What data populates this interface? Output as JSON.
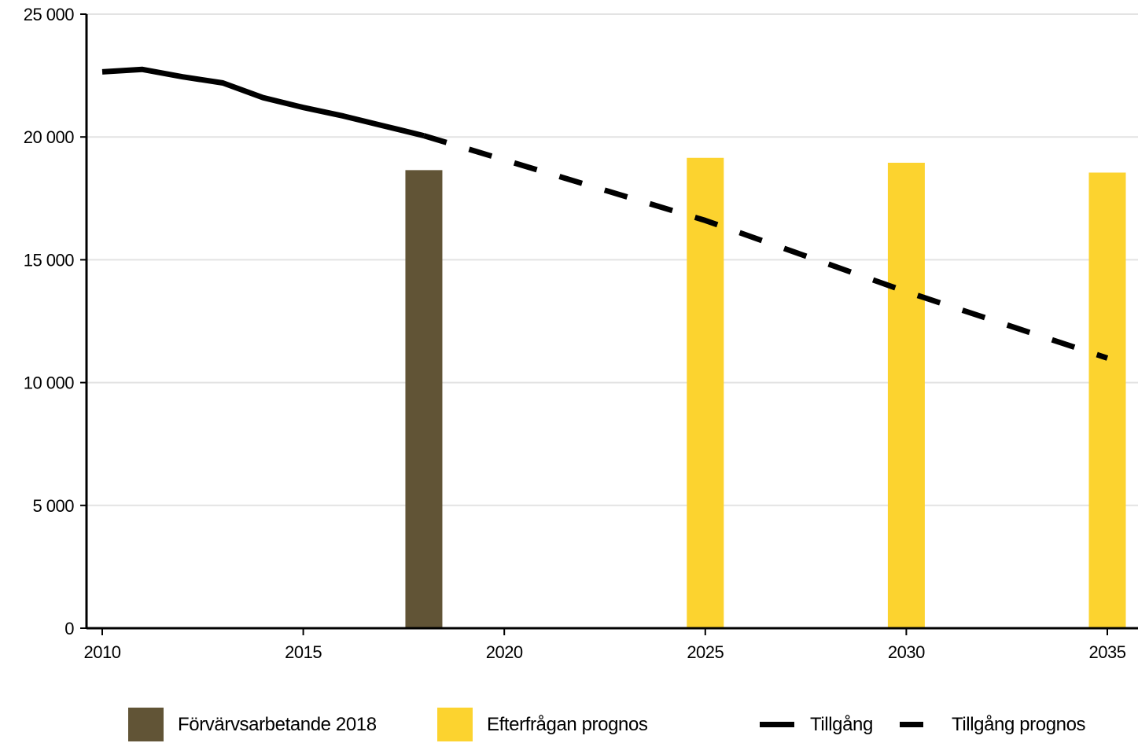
{
  "chart_data": {
    "type": "bar+line",
    "x_range": [
      2010,
      2035
    ],
    "ylim": [
      0,
      25000
    ],
    "grid": "horizontal",
    "y_ticks": [
      {
        "value": 0,
        "label": "0"
      },
      {
        "value": 5000,
        "label": "5 000"
      },
      {
        "value": 10000,
        "label": "10 000"
      },
      {
        "value": 15000,
        "label": "15 000"
      },
      {
        "value": 20000,
        "label": "20 000"
      },
      {
        "value": 25000,
        "label": "25 000"
      }
    ],
    "x_ticks": [
      {
        "value": 2010,
        "label": "2010"
      },
      {
        "value": 2015,
        "label": "2015"
      },
      {
        "value": 2020,
        "label": "2020"
      },
      {
        "value": 2025,
        "label": "2025"
      },
      {
        "value": 2030,
        "label": "2030"
      },
      {
        "value": 2035,
        "label": "2035"
      }
    ],
    "series": [
      {
        "name": "Förvärvsarbetande 2018",
        "kind": "bar",
        "color": "#615436",
        "points": [
          {
            "x": 2018,
            "y": 18650
          }
        ]
      },
      {
        "name": "Efterfrågan prognos",
        "kind": "bar",
        "color": "#fcd32f",
        "points": [
          {
            "x": 2025,
            "y": 19150
          },
          {
            "x": 2030,
            "y": 18950
          },
          {
            "x": 2035,
            "y": 18550
          }
        ]
      },
      {
        "name": "Tillgång",
        "kind": "line",
        "style": "solid",
        "color": "#000000",
        "points": [
          {
            "x": 2010,
            "y": 22650
          },
          {
            "x": 2011,
            "y": 22750
          },
          {
            "x": 2012,
            "y": 22450
          },
          {
            "x": 2013,
            "y": 22200
          },
          {
            "x": 2014,
            "y": 21600
          },
          {
            "x": 2015,
            "y": 21200
          },
          {
            "x": 2016,
            "y": 20850
          },
          {
            "x": 2017,
            "y": 20450
          },
          {
            "x": 2018,
            "y": 20050
          }
        ]
      },
      {
        "name": "Tillgång prognos",
        "kind": "line",
        "style": "dashed",
        "color": "#000000",
        "points": [
          {
            "x": 2018,
            "y": 20050
          },
          {
            "x": 2025,
            "y": 16600
          },
          {
            "x": 2030,
            "y": 13700
          },
          {
            "x": 2035,
            "y": 11000
          }
        ]
      }
    ]
  }
}
